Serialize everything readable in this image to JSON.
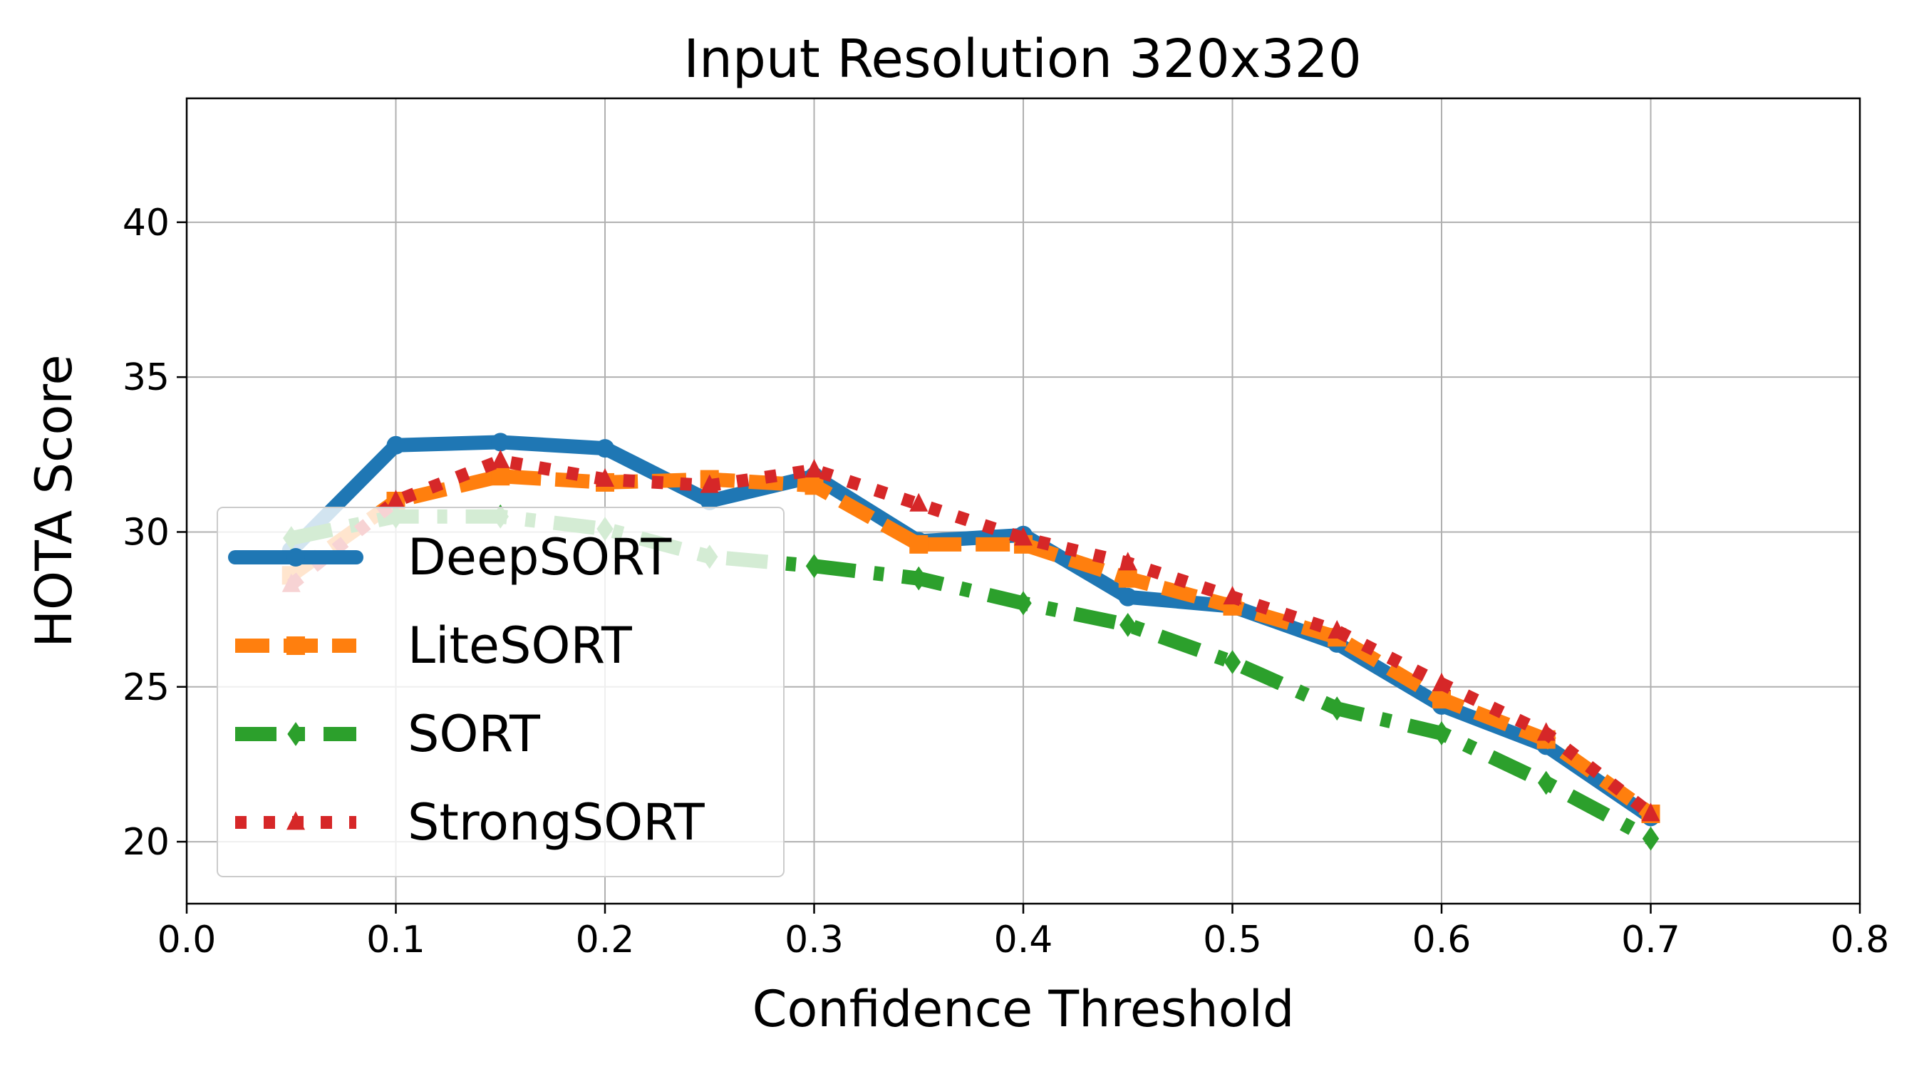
{
  "chart_data": {
    "type": "line",
    "title": "Input Resolution 320x320",
    "xlabel": "Confidence Threshold",
    "ylabel": "HOTA Score",
    "xlim": [
      0.0,
      0.8
    ],
    "ylim": [
      18,
      44
    ],
    "xticks": [
      0.0,
      0.1,
      0.2,
      0.3,
      0.4,
      0.5,
      0.6,
      0.7,
      0.8
    ],
    "xtick_labels": [
      "0.0",
      "0.1",
      "0.2",
      "0.3",
      "0.4",
      "0.5",
      "0.6",
      "0.7",
      "0.8"
    ],
    "yticks": [
      20,
      25,
      30,
      35,
      40
    ],
    "ytick_labels": [
      "20",
      "25",
      "30",
      "35",
      "40"
    ],
    "grid": true,
    "legend_position": "lower-left",
    "x": [
      0.05,
      0.1,
      0.15,
      0.2,
      0.25,
      0.3,
      0.35,
      0.4,
      0.45,
      0.5,
      0.55,
      0.6,
      0.65,
      0.7
    ],
    "series": [
      {
        "name": "DeepSORT",
        "color": "#1f77b4",
        "style": "solid",
        "marker": "circle",
        "values": [
          29.4,
          32.8,
          32.9,
          32.7,
          31.0,
          31.8,
          29.7,
          29.9,
          27.9,
          27.6,
          26.4,
          24.4,
          23.1,
          20.8
        ]
      },
      {
        "name": "LiteSORT",
        "color": "#ff7f0e",
        "style": "dashed",
        "marker": "square",
        "values": [
          28.6,
          31.0,
          31.8,
          31.6,
          31.7,
          31.5,
          29.6,
          29.6,
          28.5,
          27.6,
          26.6,
          24.6,
          23.3,
          20.9
        ]
      },
      {
        "name": "SORT",
        "color": "#2ca02c",
        "style": "dashdot",
        "marker": "diamond",
        "values": [
          29.8,
          30.5,
          30.5,
          30.1,
          29.2,
          28.9,
          28.5,
          27.7,
          27.0,
          25.8,
          24.3,
          23.5,
          21.9,
          20.1
        ]
      },
      {
        "name": "StrongSORT",
        "color": "#d62728",
        "style": "dotted",
        "marker": "triangle",
        "values": [
          28.3,
          31.0,
          32.3,
          31.7,
          31.5,
          32.0,
          30.9,
          29.8,
          29.0,
          27.9,
          26.8,
          25.1,
          23.5,
          20.9
        ]
      }
    ]
  }
}
